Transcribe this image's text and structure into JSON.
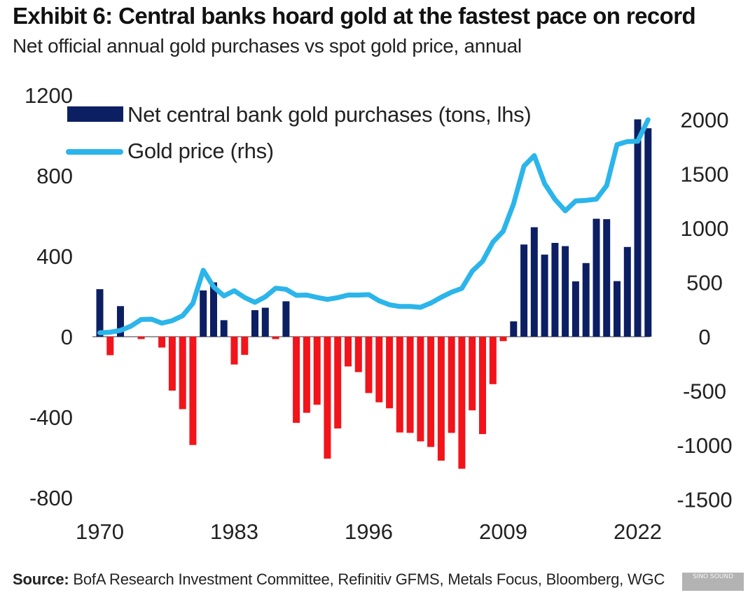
{
  "header": {
    "title": "Exhibit 6: Central banks hoard gold at the fastest pace on record",
    "subtitle": "Net official annual gold purchases vs spot gold price, annual"
  },
  "footer": {
    "source_label": "Source:",
    "source_text": " BofA Research Investment Committee, Refinitiv GFMS, Metals Focus, Bloomberg, WGC",
    "watermark": "SINO SOUND"
  },
  "colors": {
    "bar_negative": "#f2141b",
    "bar_positive": "#0d1f63",
    "line": "#2bb5ea"
  },
  "chart_data": {
    "type": "bar",
    "title": "Exhibit 6: Central banks hoard gold at the fastest pace on record",
    "subtitle": "Net official annual gold purchases vs spot gold price, annual",
    "x_ticks": [
      "1970",
      "1983",
      "1996",
      "2009",
      "2022"
    ],
    "y_left": {
      "ticks": [
        "1200",
        "800",
        "400",
        "0",
        "-400",
        "-800"
      ],
      "range": [
        -800,
        1200
      ]
    },
    "y_right": {
      "ticks": [
        "2000",
        "1500",
        "1000",
        "500",
        "0",
        "-500",
        "-1000",
        "-1500"
      ],
      "range": [
        -1500,
        2000
      ]
    },
    "legend": {
      "placement": "top-left",
      "bar_label": "Net central bank gold purchases (tons, lhs)",
      "line_label": "Gold price (rhs)"
    },
    "series": [
      {
        "name": "Net central bank gold purchases (tons, lhs)",
        "type": "bar",
        "axis": "left",
        "x": [
          1970,
          1971,
          1972,
          1973,
          1974,
          1975,
          1976,
          1977,
          1978,
          1979,
          1980,
          1981,
          1982,
          1983,
          1984,
          1985,
          1986,
          1987,
          1988,
          1989,
          1990,
          1991,
          1992,
          1993,
          1994,
          1995,
          1996,
          1997,
          1998,
          1999,
          2000,
          2001,
          2002,
          2003,
          2004,
          2005,
          2006,
          2007,
          2008,
          2009,
          2010,
          2011,
          2012,
          2013,
          2014,
          2015,
          2016,
          2017,
          2018,
          2019,
          2020,
          2021,
          2022,
          2023
        ],
        "values": [
          236,
          -92,
          152,
          0,
          -12,
          0,
          -54,
          -268,
          -360,
          -538,
          230,
          270,
          82,
          -138,
          -90,
          132,
          144,
          -12,
          176,
          -428,
          -378,
          -338,
          -606,
          -456,
          -148,
          -176,
          -280,
          -326,
          -356,
          -476,
          -478,
          -520,
          -548,
          -616,
          -478,
          -656,
          -366,
          -484,
          -236,
          -22,
          76,
          458,
          544,
          408,
          466,
          450,
          275,
          366,
          586,
          584,
          276,
          446,
          1080,
          1036
        ]
      },
      {
        "name": "Gold price (rhs)",
        "type": "line",
        "axis": "right",
        "x": [
          1970,
          1971,
          1972,
          1973,
          1974,
          1975,
          1976,
          1977,
          1978,
          1979,
          1980,
          1981,
          1982,
          1983,
          1984,
          1985,
          1986,
          1987,
          1988,
          1989,
          1990,
          1991,
          1992,
          1993,
          1994,
          1995,
          1996,
          1997,
          1998,
          1999,
          2000,
          2001,
          2002,
          2003,
          2004,
          2005,
          2006,
          2007,
          2008,
          2009,
          2010,
          2011,
          2012,
          2013,
          2014,
          2015,
          2016,
          2017,
          2018,
          2019,
          2020,
          2021,
          2022,
          2023
        ],
        "values": [
          36,
          41,
          58,
          97,
          159,
          161,
          125,
          148,
          193,
          307,
          612,
          460,
          376,
          424,
          361,
          317,
          368,
          447,
          437,
          381,
          384,
          362,
          344,
          360,
          384,
          384,
          388,
          331,
          294,
          279,
          279,
          271,
          310,
          363,
          410,
          445,
          604,
          695,
          872,
          972,
          1225,
          1572,
          1669,
          1411,
          1266,
          1160,
          1251,
          1257,
          1268,
          1393,
          1770,
          1799,
          1801,
          2000
        ]
      }
    ]
  }
}
